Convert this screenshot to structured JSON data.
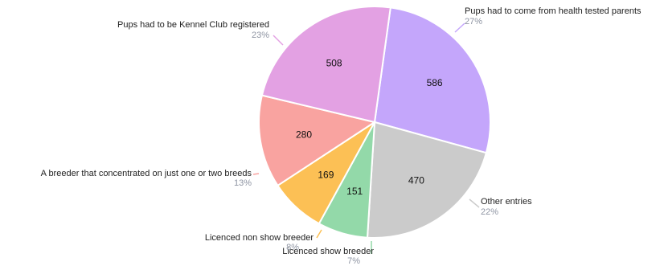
{
  "chart_data": {
    "type": "pie",
    "slices": [
      {
        "label": "Pups had to come from health tested parents",
        "value": 586,
        "percent": "27%",
        "color": "#c4a6fb"
      },
      {
        "label": "Other entries",
        "value": 470,
        "percent": "22%",
        "color": "#cbcbcb"
      },
      {
        "label": "Licenced show breeder",
        "value": 151,
        "percent": "7%",
        "color": "#93d9a9"
      },
      {
        "label": "Licenced non show breeder",
        "value": 169,
        "percent": "8%",
        "color": "#fcc055"
      },
      {
        "label": "A breeder that concentrated on just one or two breeds",
        "value": 280,
        "percent": "13%",
        "color": "#f9a3a0"
      },
      {
        "label": "Pups had to be Kennel Club registered",
        "value": 508,
        "percent": "23%",
        "color": "#e3a1e3"
      }
    ]
  }
}
